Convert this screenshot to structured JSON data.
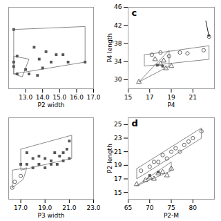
{
  "chart_data": [
    {
      "type": "scatter",
      "xlabel": "P2 width",
      "xlim": [
        12,
        17
      ],
      "ylim": [
        5.0,
        10.5
      ],
      "xticks": [
        13,
        14,
        15,
        16,
        17
      ],
      "tick_labels": "x",
      "grid": false,
      "series": [
        {
          "marker": "square",
          "color": "#555555",
          "x": [
            12.3,
            13.5,
            14.2,
            14.8,
            15.2,
            13.8,
            14.5,
            15.5,
            16.5,
            13.0,
            14.0,
            12.5,
            13.2,
            13.7,
            12.3,
            12.3,
            12.5
          ],
          "values": [
            9.0,
            7.8,
            7.5,
            7.3,
            7.3,
            7.0,
            6.8,
            6.8,
            6.8,
            6.3,
            6.4,
            6.0,
            6.0,
            5.9,
            6.5,
            6.8,
            7.2
          ]
        },
        {
          "type": "line",
          "color": "#888888",
          "x": [
            12.3,
            16.5,
            16.5,
            12.3,
            12.3
          ],
          "values": [
            9.0,
            9.2,
            6.8,
            6.0,
            9.0
          ]
        },
        {
          "type": "line",
          "color": "#888888",
          "x": [
            12.3,
            12.3,
            13.2,
            12.8,
            12.3
          ],
          "values": [
            6.0,
            7.2,
            7.0,
            5.8,
            6.0
          ]
        }
      ]
    },
    {
      "type": "scatter",
      "xlabel": "P3 width",
      "xlim": [
        16,
        23
      ],
      "ylim": [
        7.5,
        14.5
      ],
      "xticks": [
        17,
        19,
        21,
        23
      ],
      "tick_labels": "x",
      "grid": false,
      "series": [
        {
          "marker": "square",
          "color": "#555555",
          "x": [
            17.5,
            18.0,
            18.5,
            19.0,
            19.5,
            19.8,
            20.2,
            20.5,
            20.8,
            21.0,
            17.0,
            17.5,
            18.0,
            18.5,
            19.0,
            19.5,
            20.0,
            20.5,
            21.0
          ],
          "values": [
            11.5,
            11.0,
            11.2,
            11.0,
            10.8,
            11.5,
            11.2,
            11.5,
            11.8,
            12.5,
            10.5,
            10.5,
            10.2,
            10.5,
            10.2,
            10.5,
            10.5,
            10.8,
            11.0
          ]
        },
        {
          "marker": "circle-open",
          "color": "#555555",
          "x": [
            16.5,
            17.0,
            16.3
          ],
          "values": [
            9.0,
            9.5,
            8.5
          ]
        },
        {
          "type": "line",
          "color": "#888888",
          "x": [
            17.0,
            21.2,
            21.2,
            17.0,
            17.0
          ],
          "values": [
            11.8,
            13.0,
            11.0,
            10.0,
            11.8
          ]
        },
        {
          "type": "line",
          "color": "#888888",
          "x": [
            16.3,
            16.3,
            17.5,
            17.2,
            16.3
          ],
          "values": [
            8.5,
            10.0,
            10.2,
            9.2,
            8.5
          ]
        }
      ]
    },
    {
      "type": "scatter",
      "title": "c",
      "xlabel": "P4",
      "ylabel": "P4 length",
      "xlim": [
        15,
        23
      ],
      "ylim": [
        28,
        46
      ],
      "xticks": [
        15,
        17,
        19,
        21
      ],
      "yticks": [
        30,
        34,
        38,
        42,
        46
      ],
      "grid": false,
      "series": [
        {
          "marker": "circle-open",
          "color": "#555555",
          "x": [
            17.2,
            18.0,
            18.8,
            19.8,
            20.5,
            22.0,
            22.5
          ],
          "values": [
            35.5,
            36.0,
            35.2,
            36.0,
            35.8,
            36.5,
            39.5
          ]
        },
        {
          "marker": "triangle-open",
          "color": "#555555",
          "x": [
            16.0,
            17.5,
            18.0,
            18.3,
            18.5,
            19.0
          ],
          "values": [
            29.5,
            34.5,
            33.5,
            34.2,
            32.5,
            33.0
          ]
        },
        {
          "marker": "square",
          "color": "#555555",
          "x": [
            17.7,
            18.2
          ],
          "values": [
            33.2,
            33.0
          ]
        },
        {
          "type": "line",
          "color": "#888888",
          "x": [
            16.5,
            22.5,
            22.5,
            16.5,
            16.5
          ],
          "values": [
            35.5,
            37.5,
            34.5,
            33.0,
            35.5
          ]
        },
        {
          "type": "line",
          "color": "#888888",
          "x": [
            16.0,
            18.8,
            18.8,
            16.0
          ],
          "values": [
            29.5,
            36.5,
            33.0,
            29.5
          ]
        }
      ],
      "arrows": [
        {
          "x1": 22.2,
          "y1": 43.0,
          "x2": 22.5,
          "y2": 39.5
        }
      ]
    },
    {
      "type": "scatter",
      "title": "d",
      "xlabel": "P2-M",
      "ylabel": "P2 length",
      "xlim": [
        65,
        85
      ],
      "ylim": [
        14,
        26
      ],
      "xticks": [
        65,
        70,
        75,
        80
      ],
      "yticks": [
        15,
        17,
        19,
        21,
        23,
        25
      ],
      "grid": false,
      "series": [
        {
          "marker": "circle-open",
          "color": "#555555",
          "x": [
            68,
            70,
            71,
            72,
            73,
            74,
            75,
            76,
            77,
            78,
            79,
            80,
            82
          ],
          "values": [
            18.2,
            18.8,
            19.5,
            19.5,
            20.5,
            20.0,
            21.0,
            21.5,
            21.0,
            22.0,
            22.5,
            23.0,
            24.0
          ]
        },
        {
          "marker": "triangle-open",
          "color": "#555555",
          "x": [
            67,
            69,
            70,
            71,
            72,
            73,
            74,
            75
          ],
          "values": [
            16.2,
            16.8,
            17.2,
            17.0,
            17.8,
            18.0,
            17.5,
            18.5
          ]
        },
        {
          "marker": "square",
          "color": "#555555",
          "x": [
            70,
            72
          ],
          "values": [
            17.5,
            18.0
          ]
        },
        {
          "type": "line",
          "color": "#888888",
          "x": [
            67,
            82,
            82,
            67,
            67
          ],
          "values": [
            18.5,
            24.5,
            23.0,
            17.0,
            18.5
          ]
        },
        {
          "type": "line",
          "color": "#888888",
          "x": [
            67,
            75,
            75,
            67
          ],
          "values": [
            16.0,
            19.5,
            18.2,
            16.0
          ]
        }
      ]
    }
  ]
}
